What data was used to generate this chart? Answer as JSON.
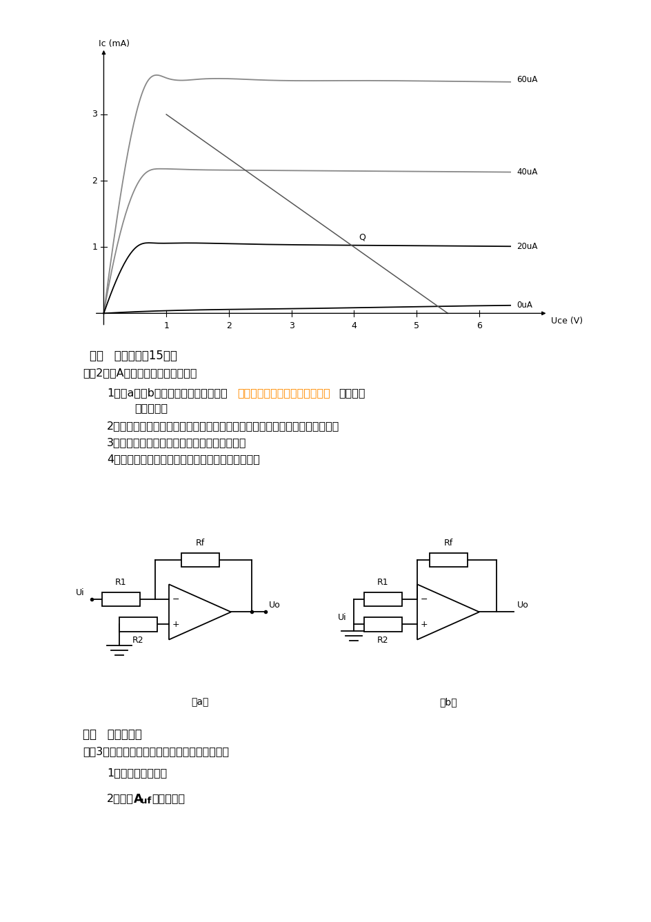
{
  "bg_color": "#ffffff",
  "highlight_color": "#FF8C00",
  "curve_color_gray": "#888888",
  "curve_color_black": "#000000",
  "load_line_color": "#555555",
  "section2_title": "二、   回答问题（15分）",
  "section2_intro": "在图2中，A为理想运算放大器，问：",
  "q1_prefix": "1，图a和图b所示的电路是什么类型（",
  "q1_colored": "比例，求和，比较，同相，反相",
  "q1_suffix": "）的信号",
  "q1_cont": "        运算电路？",
  "q2": "2，他们分别属于什么类型的反馈电路（正，负，电压，电流，串联，并联）？",
  "q3": "3，他们的输入电阴有什么不同（哪一个大）？",
  "q4": "4，他们的电压放大倍数各是多少（写出表达式）？",
  "section3_title": "三、   分析并计算",
  "section3_intro": "如图3所示电路中，运算放大器为理想运算放大器",
  "s3q1": "1，判断反馈组态：",
  "s3q2a": "2，求出",
  "s3q2b": "A",
  "s3q2c": "uf",
  "s3q2d": "的表达式。"
}
